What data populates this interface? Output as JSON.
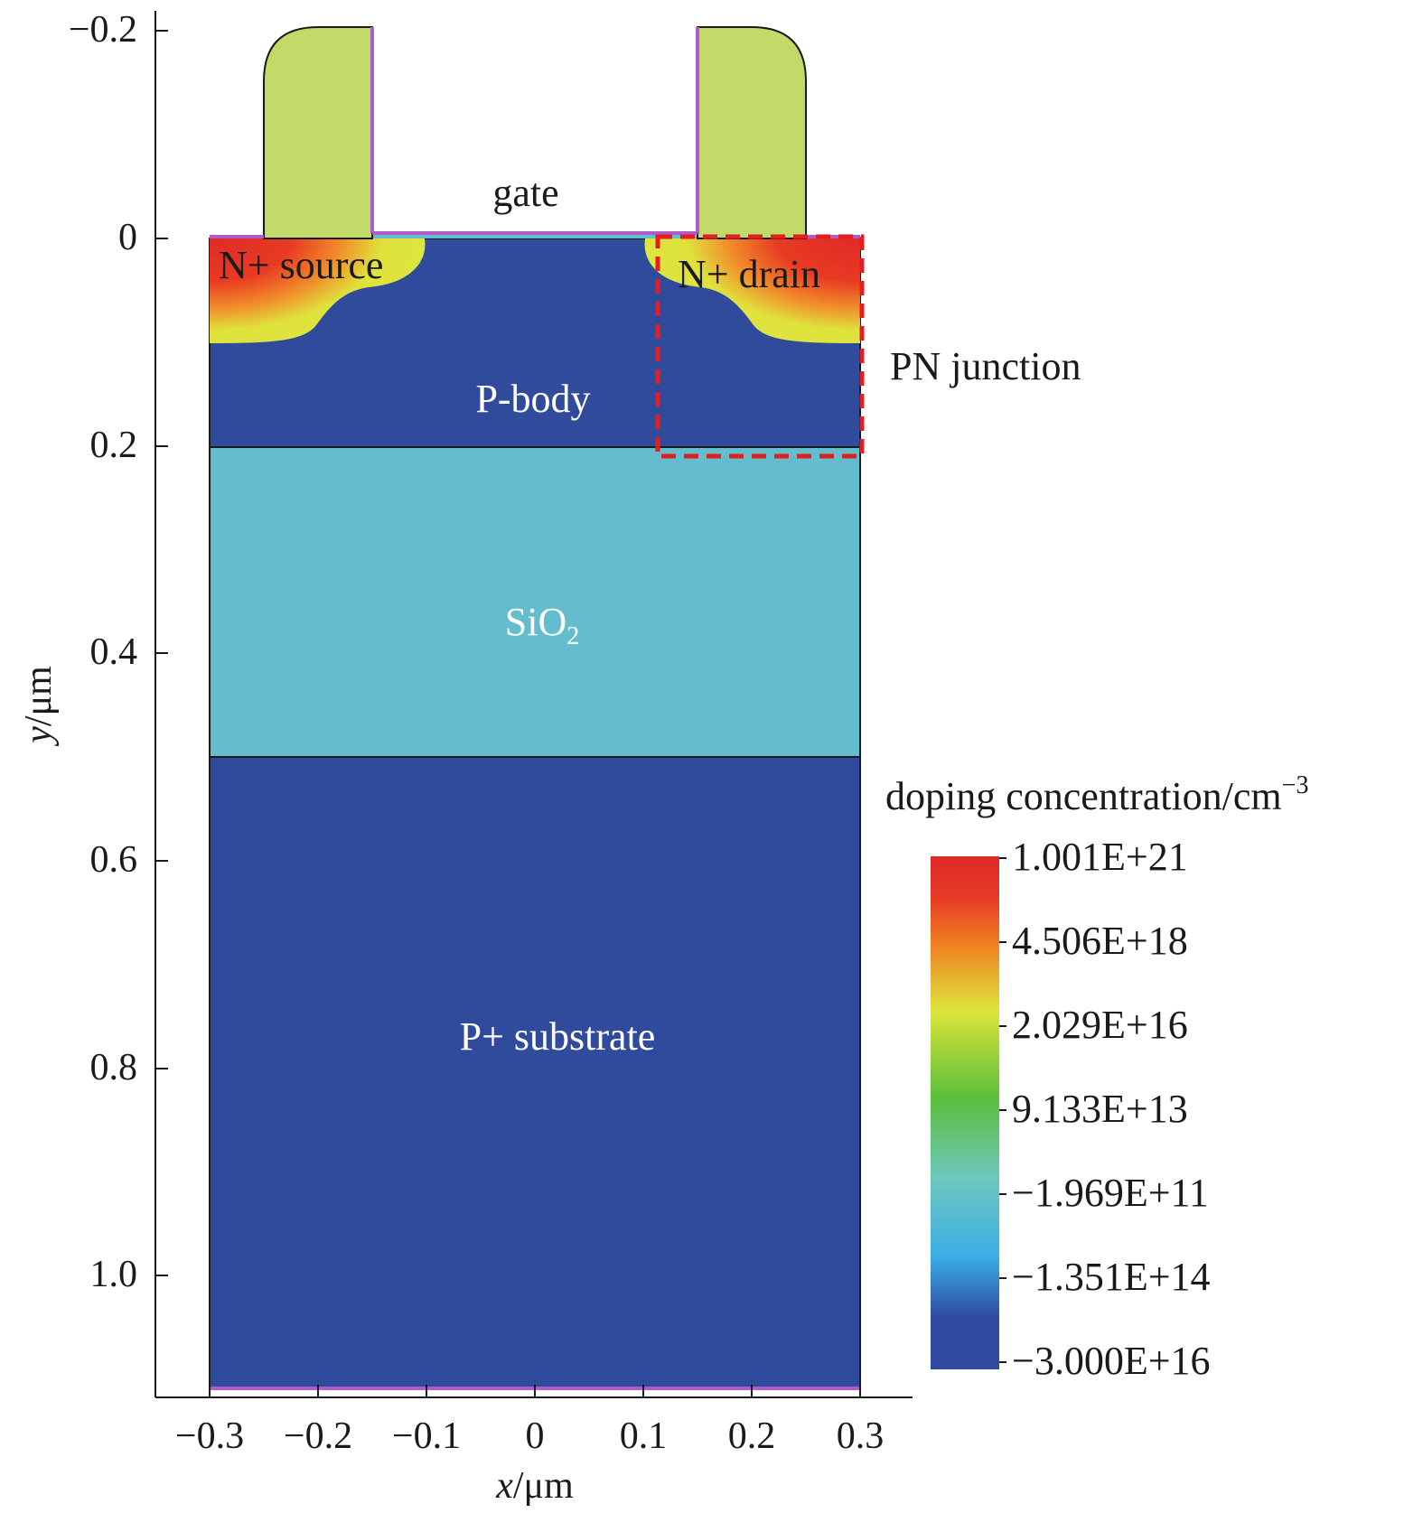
{
  "figure": {
    "axes": {
      "x": {
        "label_var": "x",
        "label_unit": "/μm",
        "range": [
          -0.35,
          0.35
        ],
        "ticks": [
          -0.3,
          -0.2,
          -0.1,
          0,
          0.1,
          0.2,
          0.3
        ],
        "tick_labels": [
          "−0.3",
          "−0.2",
          "−0.1",
          "0",
          "0.1",
          "0.2",
          "0.3"
        ]
      },
      "y": {
        "label_var": "y",
        "label_unit": "/μm",
        "range": [
          -0.2,
          1.1
        ],
        "inverted": true,
        "ticks": [
          -0.2,
          0,
          0.2,
          0.4,
          0.6,
          0.8,
          1.0
        ],
        "tick_labels": [
          "−0.2",
          "0",
          "0.2",
          "0.4",
          "0.6",
          "0.8",
          "1.0"
        ]
      }
    },
    "regions": {
      "gate": "gate",
      "source": "N+ source",
      "drain": "N+ drain",
      "body": "P-body",
      "oxide_base": "SiO",
      "oxide_sub": "2",
      "substrate": "P+ substrate"
    },
    "annotation": {
      "pn_junction": "PN junction"
    },
    "colorbar": {
      "title_text": "doping concentration/cm",
      "title_sup": "−3",
      "labels": [
        "1.001E+21",
        "4.506E+18",
        "2.029E+16",
        "9.133E+13",
        "−1.969E+11",
        "−1.351E+14",
        "−3.000E+16"
      ],
      "colors": [
        "#e02a28",
        "#f07e22",
        "#dde43a",
        "#5cbf3a",
        "#6ec8bf",
        "#3aaee6",
        "#2f4a9e"
      ]
    },
    "colors": {
      "p_region": "#314b9c",
      "oxide": "#63bdcd",
      "gate_poly": "#c2da68",
      "contact": "#b05cc8",
      "junction_box": "#e02020"
    }
  }
}
